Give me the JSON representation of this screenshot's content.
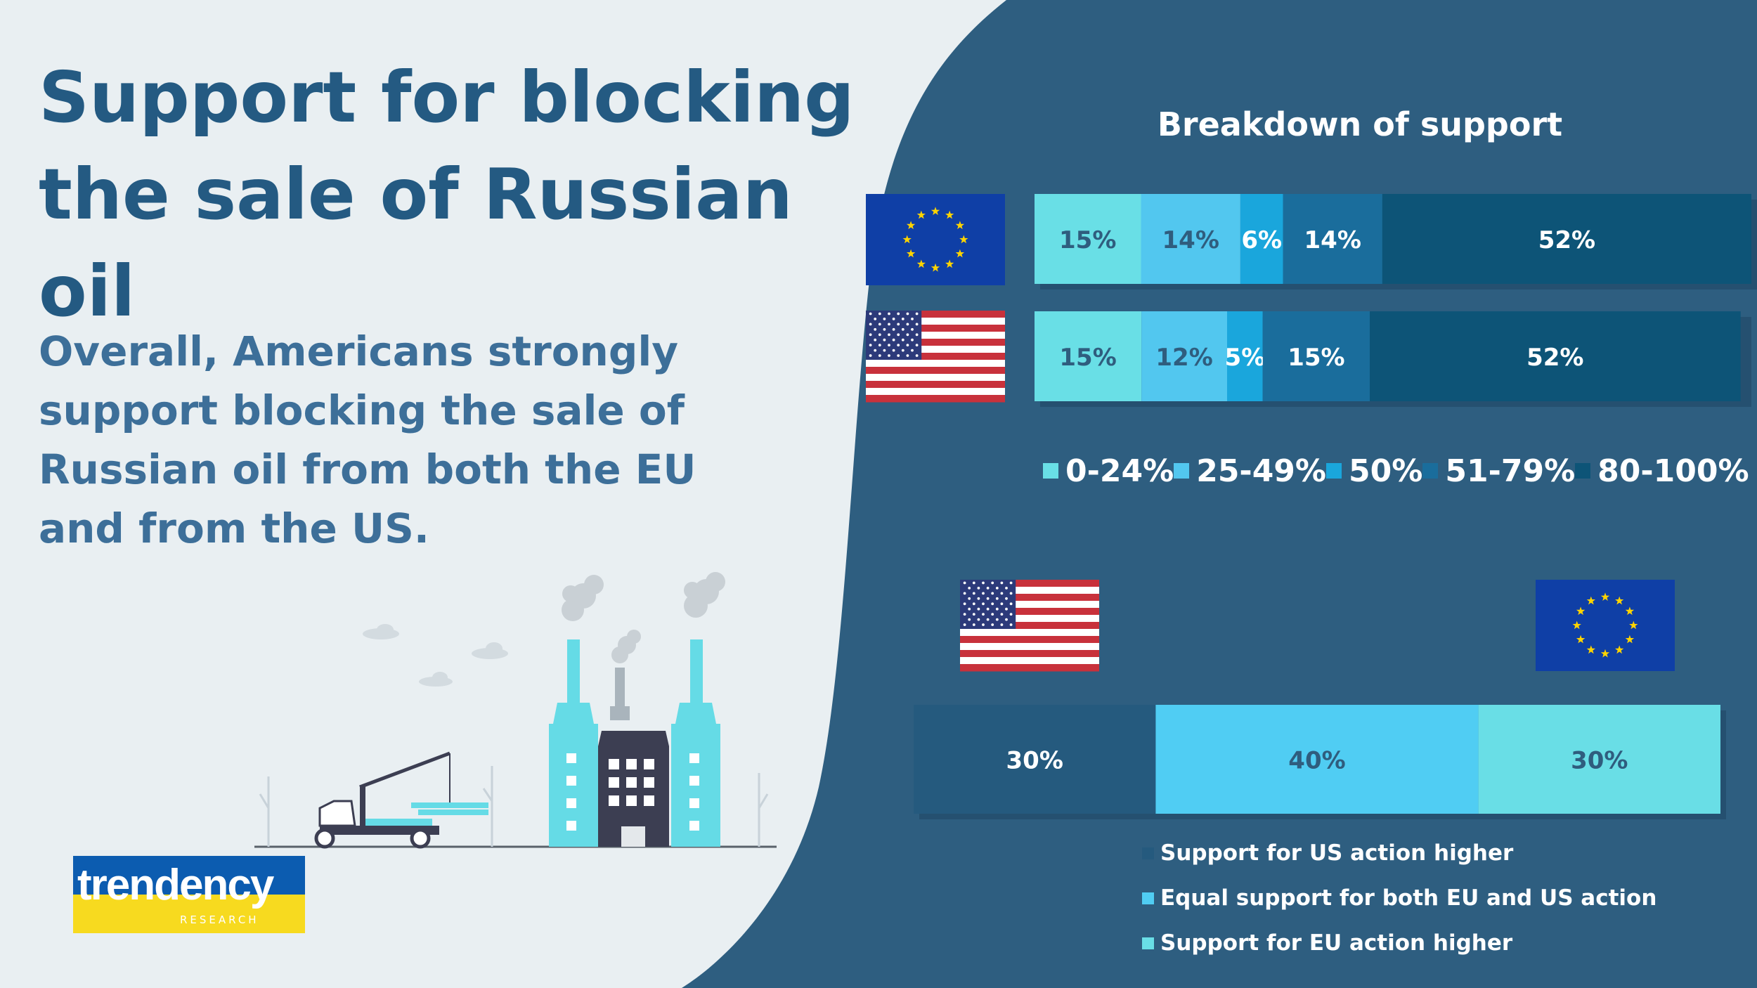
{
  "header": {
    "title": "Support for blocking the sale of Russian oil",
    "subtitle": "Overall, Americans strongly support blocking the sale of Russian oil from both the EU and from the US."
  },
  "logo": {
    "word": "trendency",
    "sub": "RESEARCH"
  },
  "colors": {
    "background_light": "#e9eff2",
    "panel_dark": "#2e5e80",
    "title_blue": "#245a82",
    "band_0_24": "#69dfe6",
    "band_25_49": "#52c7ef",
    "band_50": "#1aa6dc",
    "band_51_79": "#1a6d9c",
    "band_80_100": "#0d5477",
    "us_higher": "#255a7e",
    "equal": "#50cdf3",
    "eu_higher": "#69dee6"
  },
  "chart_data": [
    {
      "type": "bar",
      "orientation": "horizontal",
      "stacked": true,
      "title": "Breakdown of support",
      "categories": [
        "EU flag",
        "US flag"
      ],
      "category_icons": [
        "eu-flag-icon",
        "us-flag-icon"
      ],
      "series": [
        {
          "name": "0-24%",
          "values": [
            15,
            15
          ],
          "labels": [
            "15%",
            "15%"
          ],
          "color": "#69dfe6",
          "label_color": "#2f5d7e"
        },
        {
          "name": "25-49%",
          "values": [
            14,
            12
          ],
          "labels": [
            "14%",
            "12%"
          ],
          "color": "#52c7ef",
          "label_color": "#2f5d7e"
        },
        {
          "name": "50%",
          "values": [
            6,
            5
          ],
          "labels": [
            "6%",
            "5%"
          ],
          "color": "#1aa6dc",
          "label_color": "#ffffff"
        },
        {
          "name": "51-79%",
          "values": [
            14,
            15
          ],
          "labels": [
            "14%",
            "15%"
          ],
          "color": "#1a6d9c",
          "label_color": "#ffffff"
        },
        {
          "name": "80-100%",
          "values": [
            52,
            52
          ],
          "labels": [
            "52%",
            "52%"
          ],
          "color": "#0d5477",
          "label_color": "#ffffff"
        }
      ],
      "legend_position": "bottom",
      "grid": false
    },
    {
      "type": "bar",
      "orientation": "horizontal",
      "stacked": true,
      "categories": [
        "US vs EU"
      ],
      "end_icons": [
        "us-flag-icon",
        "eu-flag-icon"
      ],
      "series": [
        {
          "name": "Support for US action higher",
          "values": [
            30
          ],
          "labels": [
            "30%"
          ],
          "color": "#255a7e",
          "label_color": "#ffffff"
        },
        {
          "name": "Equal support for both EU and US action",
          "values": [
            40
          ],
          "labels": [
            "40%"
          ],
          "color": "#50cdf3",
          "label_color": "#2f5d7e"
        },
        {
          "name": "Support for EU action higher",
          "values": [
            30
          ],
          "labels": [
            "30%"
          ],
          "color": "#69dee6",
          "label_color": "#2f5d7e"
        }
      ],
      "legend_position": "bottom",
      "grid": false
    }
  ]
}
